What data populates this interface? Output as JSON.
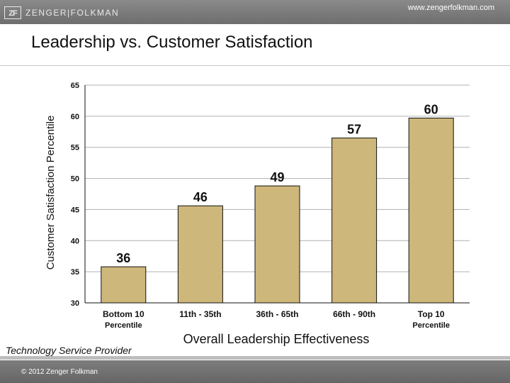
{
  "header": {
    "logo_mark": "ZF",
    "logo_text": "ZENGER|FOLKMAN",
    "url": "www.zengerfolkman.com"
  },
  "slide": {
    "title": "Leadership vs. Customer Satisfaction"
  },
  "footer": {
    "provider": "Technology Service Provider",
    "copyright": "© 2012 Zenger Folkman"
  },
  "colors": {
    "bar_fill": "#cdb77a",
    "bar_stroke": "#111111",
    "grid": "#b0b0b0"
  },
  "chart_data": {
    "type": "bar",
    "title": "",
    "xlabel": "Overall Leadership Effectiveness",
    "ylabel": "Customer Satisfaction Percentile",
    "categories": [
      [
        "Bottom 10",
        "Percentile"
      ],
      [
        "11th - 35th"
      ],
      [
        "36th - 65th"
      ],
      [
        "66th - 90th"
      ],
      [
        "Top 10",
        "Percentile"
      ]
    ],
    "values": [
      36,
      46,
      49,
      57,
      60
    ],
    "bar_heights": [
      35.8,
      45.6,
      48.8,
      56.5,
      59.7
    ],
    "ylim": [
      30,
      65
    ],
    "yticks": [
      30,
      35,
      40,
      45,
      50,
      55,
      60,
      65
    ],
    "grid": true
  }
}
